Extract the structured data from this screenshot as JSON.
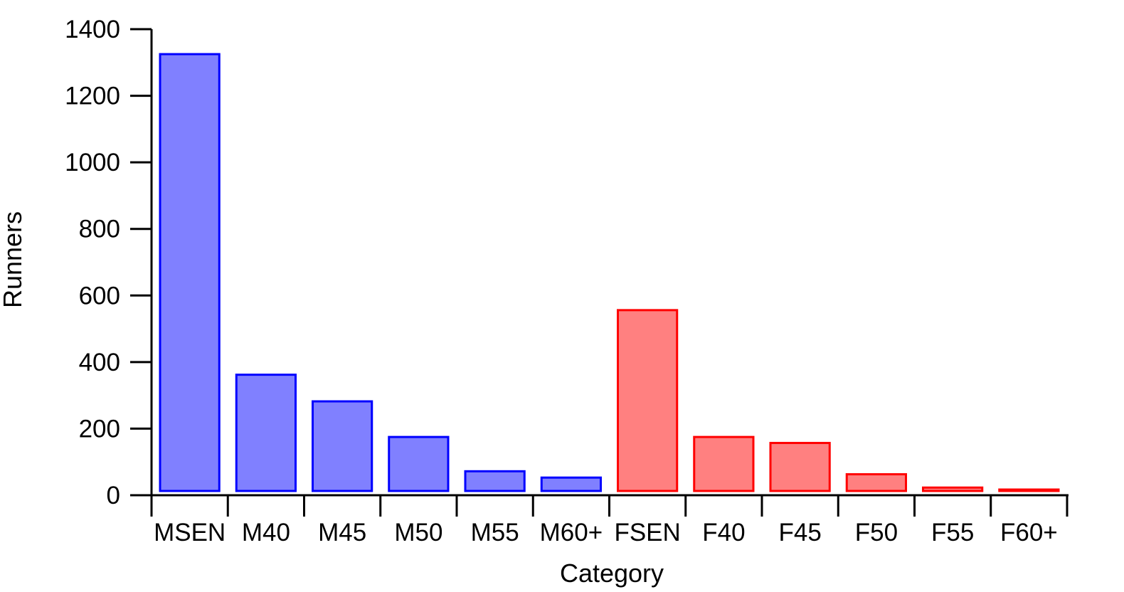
{
  "chart_data": {
    "type": "bar",
    "title": "",
    "xlabel": "Category",
    "ylabel": "Runners",
    "categories": [
      "MSEN",
      "M40",
      "M45",
      "M50",
      "M55",
      "M60+",
      "FSEN",
      "F40",
      "F45",
      "F50",
      "F55",
      "F60+"
    ],
    "values": [
      1325,
      362,
      282,
      175,
      72,
      53,
      556,
      175,
      157,
      63,
      23,
      10
    ],
    "groups": [
      "male",
      "male",
      "male",
      "male",
      "male",
      "male",
      "female",
      "female",
      "female",
      "female",
      "female",
      "female"
    ],
    "colors": {
      "male": {
        "fill": "#8080ff",
        "stroke": "#0000ff"
      },
      "female": {
        "fill": "#ff8080",
        "stroke": "#ff0000"
      }
    },
    "ylim": [
      0,
      1400
    ],
    "yticks": [
      0,
      200,
      400,
      600,
      800,
      1000,
      1200,
      1400
    ],
    "grid": false,
    "legend": "none"
  }
}
